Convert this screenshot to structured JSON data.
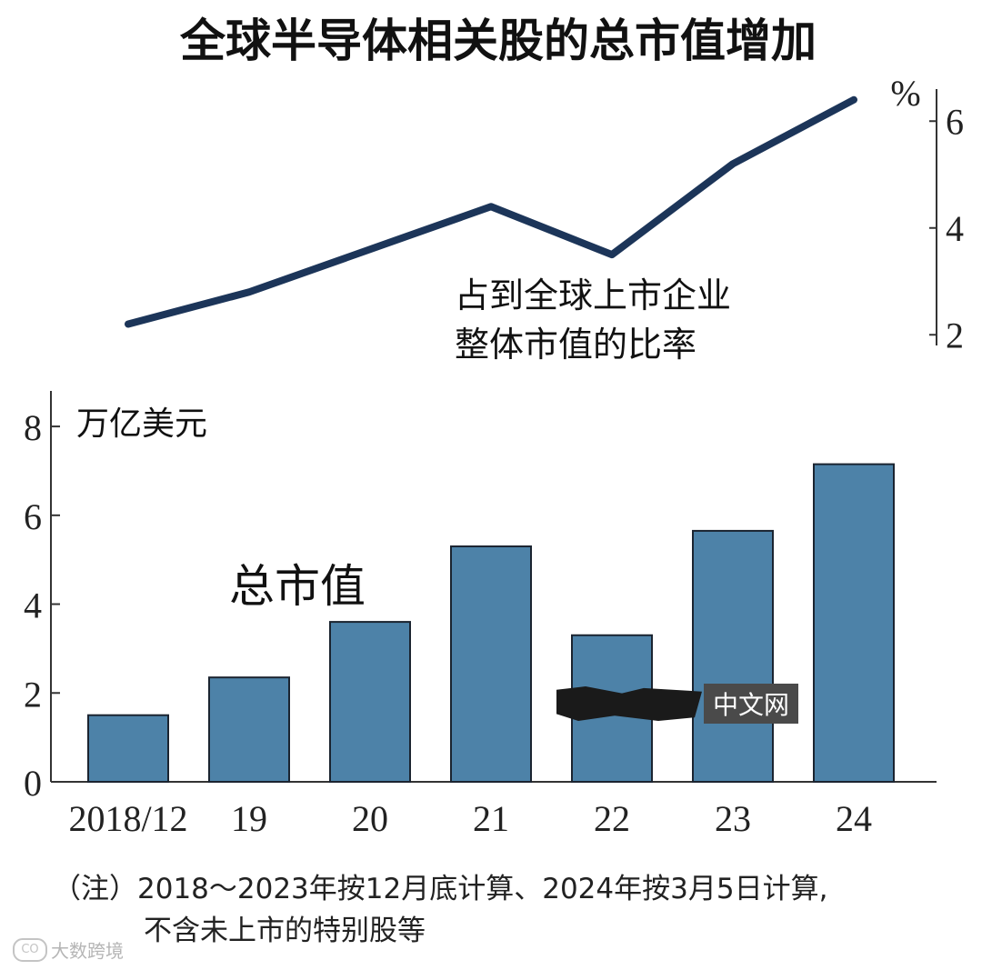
{
  "title": "全球半导体相关股的总市值增加",
  "note_line1": "（注）2018～2023年按12月底计算、2024年按3月5日计算,",
  "note_line2": "不含未上市的特别股等",
  "watermark_text": "中文网",
  "footer_brand": "大数跨境",
  "colors": {
    "bar": "#4d82a8",
    "bar_stroke": "#1b2430",
    "line": "#1c3559",
    "text": "#111111"
  },
  "chart_data": [
    {
      "type": "line",
      "name": "share",
      "label": [
        "占到全球上市企业",
        "整体市值的比率"
      ],
      "unit": "%",
      "x": [
        "2018/12",
        "19",
        "20",
        "21",
        "22",
        "23",
        "24"
      ],
      "values": [
        2.2,
        2.8,
        3.6,
        4.4,
        3.5,
        5.2,
        6.4
      ],
      "yticks": [
        2,
        4,
        6
      ],
      "ylim": [
        1.8,
        6.6
      ]
    },
    {
      "type": "bar",
      "name": "market_cap",
      "label": "总市值",
      "unit": "万亿美元",
      "categories": [
        "2018/12",
        "19",
        "20",
        "21",
        "22",
        "23",
        "24"
      ],
      "values": [
        1.5,
        2.35,
        3.6,
        5.3,
        3.3,
        5.65,
        7.15
      ],
      "yticks": [
        0,
        2,
        4,
        6,
        8
      ],
      "ylim": [
        0,
        8.8
      ]
    }
  ]
}
